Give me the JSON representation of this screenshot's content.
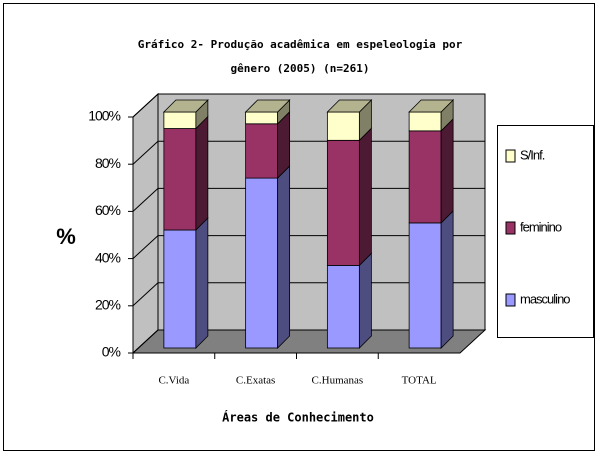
{
  "chart_data": {
    "type": "bar3d_stacked",
    "title": [
      "Gráfico 2- Produção acadêmica em espeleologia por",
      "gênero (2005) (n=261)"
    ],
    "y_label": "%",
    "x_label": "Áreas de Conhecimento",
    "categories": [
      "C.Vida",
      "C.Exatas",
      "C.Humanas",
      "TOTAL"
    ],
    "series": [
      {
        "name": "masculino",
        "color": "#9999ff",
        "values": [
          50,
          72,
          35,
          53
        ]
      },
      {
        "name": "feminino",
        "color": "#993366",
        "values": [
          43,
          23,
          53,
          39
        ]
      },
      {
        "name": "S/Inf.",
        "color": "#ffffcc",
        "values": [
          7,
          5,
          12,
          8
        ]
      }
    ],
    "ylim": [
      0,
      100
    ],
    "yticks": [
      {
        "value": 0,
        "label": "0%"
      },
      {
        "value": 20,
        "label": "20%"
      },
      {
        "value": 40,
        "label": "40%"
      },
      {
        "value": 60,
        "label": "60%"
      },
      {
        "value": 80,
        "label": "80%"
      },
      {
        "value": 100,
        "label": "100%"
      }
    ],
    "grid": true,
    "legend": "right"
  }
}
